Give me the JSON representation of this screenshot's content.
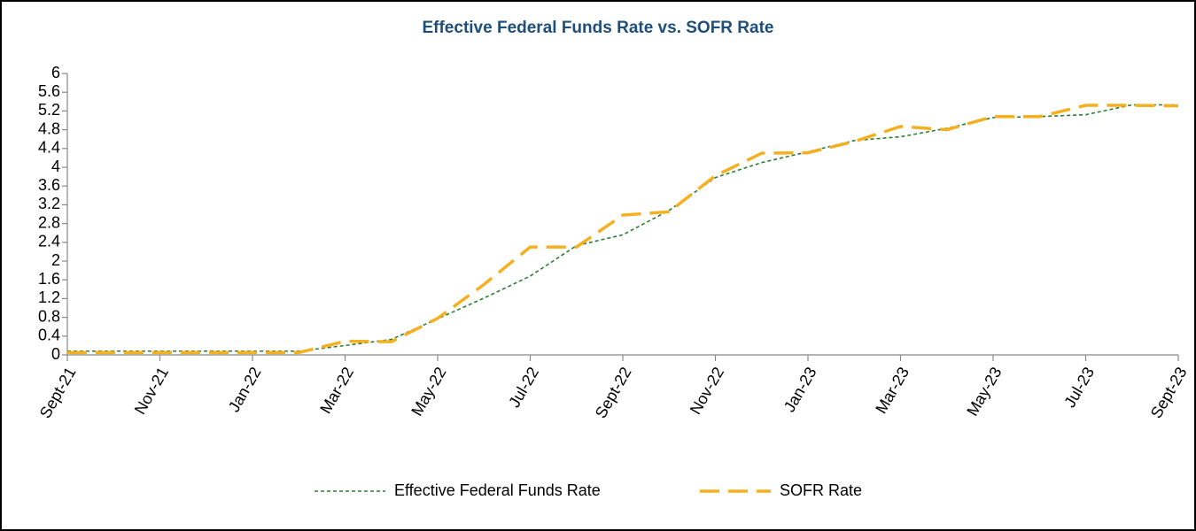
{
  "chart_data": {
    "type": "line",
    "title": "Effective Federal Funds Rate vs. SOFR Rate",
    "categories": [
      "Sept-21",
      null,
      "Nov-21",
      null,
      "Jan-22",
      null,
      "Mar-22",
      null,
      "May-22",
      null,
      "Jul-22",
      null,
      "Sept-22",
      null,
      "Nov-22",
      null,
      "Jan-23",
      null,
      "Mar-23",
      null,
      "May-23",
      null,
      "Jul-23",
      null,
      "Sept-23"
    ],
    "series": [
      {
        "name": "Effective Federal Funds Rate",
        "color": "#2e7d32",
        "dash": "dotted",
        "values": [
          0.08,
          0.08,
          0.08,
          0.08,
          0.08,
          0.08,
          0.2,
          0.33,
          0.77,
          1.21,
          1.68,
          2.33,
          2.56,
          3.08,
          3.78,
          4.1,
          4.33,
          4.57,
          4.65,
          4.83,
          5.06,
          5.08,
          5.12,
          5.33,
          5.33
        ]
      },
      {
        "name": "SOFR Rate",
        "color": "#f5b020",
        "dash": "long",
        "values": [
          0.05,
          0.05,
          0.05,
          0.05,
          0.05,
          0.05,
          0.29,
          0.28,
          0.78,
          1.5,
          2.3,
          2.3,
          2.98,
          3.05,
          3.82,
          4.3,
          4.31,
          4.55,
          4.87,
          4.8,
          5.08,
          5.08,
          5.32,
          5.32,
          5.31
        ]
      }
    ],
    "ylim": [
      0,
      6
    ],
    "yticks": [
      0,
      0.4,
      0.8,
      1.2,
      1.6,
      2,
      2.4,
      2.8,
      3.2,
      3.6,
      4,
      4.4,
      4.8,
      5.2,
      5.6,
      6
    ],
    "grid": false,
    "legend": "bottom"
  }
}
